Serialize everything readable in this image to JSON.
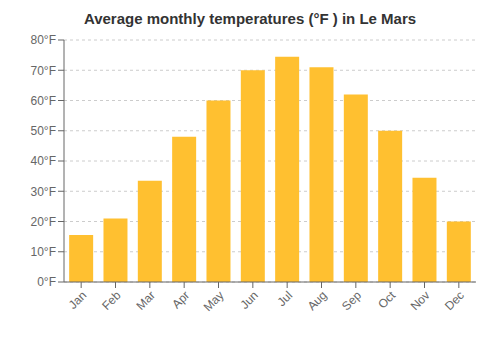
{
  "chart_data": {
    "type": "bar",
    "title": "Average monthly temperatures (°F ) in Le Mars",
    "categories": [
      "Jan",
      "Feb",
      "Mar",
      "Apr",
      "May",
      "Jun",
      "Jul",
      "Aug",
      "Sep",
      "Oct",
      "Nov",
      "Dec"
    ],
    "values": [
      15.5,
      21,
      33.5,
      48,
      60,
      70,
      74.5,
      71,
      62,
      50,
      34.5,
      20
    ],
    "color": "#FFC030",
    "ylim": [
      0,
      80
    ],
    "yticks": [
      {
        "value": 0,
        "label": "0°F"
      },
      {
        "value": 10,
        "label": "10°F"
      },
      {
        "value": 20,
        "label": "20°F"
      },
      {
        "value": 30,
        "label": "30°F"
      },
      {
        "value": 40,
        "label": "40°F"
      },
      {
        "value": 50,
        "label": "50°F"
      },
      {
        "value": 60,
        "label": "60°F"
      },
      {
        "value": 70,
        "label": "70°F"
      },
      {
        "value": 80,
        "label": "80°F"
      }
    ],
    "grid": true
  }
}
